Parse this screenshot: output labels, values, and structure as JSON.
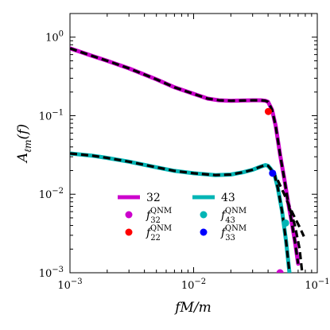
{
  "chart_data": {
    "type": "line",
    "xscale": "log",
    "yscale": "log",
    "xlim": [
      0.001,
      0.1
    ],
    "ylim": [
      0.001,
      2
    ],
    "xlabel": "fM/m",
    "ylabel": "A_ℓm(f)",
    "grid": false,
    "legend_position": "center-bottom",
    "x_ticks": [
      {
        "value": 0.001,
        "base": "10",
        "exp": "−3"
      },
      {
        "value": 0.01,
        "base": "10",
        "exp": "−2"
      },
      {
        "value": 0.1,
        "base": "10",
        "exp": "−1"
      }
    ],
    "y_ticks": [
      {
        "value": 0.001,
        "base": "10",
        "exp": "−3"
      },
      {
        "value": 0.01,
        "base": "10",
        "exp": "−2"
      },
      {
        "value": 0.1,
        "base": "10",
        "exp": "−1"
      },
      {
        "value": 1,
        "base": "10",
        "exp": "0"
      }
    ],
    "series": [
      {
        "name": "32",
        "color": "#cc00cc",
        "x": [
          0.001,
          0.0015,
          0.002,
          0.003,
          0.005,
          0.007,
          0.01,
          0.013,
          0.016,
          0.02,
          0.025,
          0.03,
          0.035,
          0.038,
          0.04,
          0.043,
          0.046,
          0.05,
          0.054,
          0.058,
          0.062,
          0.066,
          0.07
        ],
        "y": [
          0.72,
          0.58,
          0.5,
          0.4,
          0.29,
          0.23,
          0.19,
          0.165,
          0.157,
          0.155,
          0.156,
          0.157,
          0.157,
          0.155,
          0.15,
          0.12,
          0.075,
          0.032,
          0.016,
          0.008,
          0.0045,
          0.0025,
          0.0013
        ]
      },
      {
        "name": "43",
        "color": "#00b5b5",
        "x": [
          0.001,
          0.0015,
          0.002,
          0.003,
          0.005,
          0.007,
          0.01,
          0.015,
          0.02,
          0.025,
          0.03,
          0.035,
          0.038,
          0.04,
          0.042,
          0.045,
          0.048,
          0.052,
          0.056,
          0.06
        ],
        "y": [
          0.033,
          0.031,
          0.029,
          0.026,
          0.022,
          0.0198,
          0.0185,
          0.0175,
          0.0178,
          0.019,
          0.0205,
          0.0225,
          0.0235,
          0.023,
          0.021,
          0.018,
          0.012,
          0.006,
          0.0025,
          0.0009
        ]
      },
      {
        "name": "",
        "color": "#000000",
        "dashed": true,
        "x": [
          0.001,
          0.0015,
          0.002,
          0.003,
          0.005,
          0.007,
          0.01,
          0.013,
          0.016,
          0.02,
          0.025,
          0.03,
          0.035,
          0.038,
          0.04,
          0.043,
          0.046,
          0.05,
          0.054,
          0.058,
          0.062,
          0.066,
          0.07
        ],
        "y": [
          0.72,
          0.58,
          0.5,
          0.4,
          0.29,
          0.23,
          0.19,
          0.165,
          0.157,
          0.155,
          0.156,
          0.157,
          0.157,
          0.155,
          0.15,
          0.12,
          0.075,
          0.032,
          0.016,
          0.008,
          0.0045,
          0.0025,
          0.0013
        ]
      },
      {
        "name": "",
        "color": "#000000",
        "dashed": true,
        "x": [
          0.001,
          0.0015,
          0.002,
          0.003,
          0.005,
          0.007,
          0.01,
          0.015,
          0.02,
          0.025,
          0.03,
          0.035,
          0.038,
          0.04,
          0.042,
          0.045,
          0.048,
          0.052,
          0.056,
          0.06
        ],
        "y": [
          0.033,
          0.031,
          0.029,
          0.026,
          0.022,
          0.0198,
          0.0185,
          0.0175,
          0.0178,
          0.019,
          0.0205,
          0.0225,
          0.0235,
          0.023,
          0.021,
          0.018,
          0.012,
          0.006,
          0.0025,
          0.0009
        ]
      },
      {
        "name": "",
        "color": "#000000",
        "dashed": true,
        "x": [
          0.043,
          0.048,
          0.054,
          0.06,
          0.066,
          0.072,
          0.078
        ],
        "y": [
          0.02,
          0.015,
          0.01,
          0.0068,
          0.005,
          0.0038,
          0.0029
        ]
      },
      {
        "name": "",
        "color": "#000000",
        "dashed": true,
        "x": [
          0.06,
          0.066,
          0.072,
          0.076
        ],
        "y": [
          0.0065,
          0.004,
          0.002,
          0.0009
        ]
      }
    ],
    "markers": [
      {
        "label": "f_32^QNM",
        "color": "#cc00cc",
        "x": 0.05,
        "y": 0.001
      },
      {
        "label": "f_22^QNM",
        "color": "#ff0000",
        "x": 0.0402,
        "y": 0.113
      },
      {
        "label": "f_43^QNM",
        "color": "#00b5b5",
        "x": 0.0555,
        "y": 0.0043
      },
      {
        "label": "f_33^QNM",
        "color": "#0000ff",
        "x": 0.0435,
        "y": 0.0185
      }
    ],
    "legend": [
      {
        "kind": "line",
        "color": "#cc00cc",
        "text": "32"
      },
      {
        "kind": "line",
        "color": "#00b5b5",
        "text": "43"
      },
      {
        "kind": "dot",
        "color": "#cc00cc",
        "sym": "f",
        "sub": "32",
        "sup": "QNM"
      },
      {
        "kind": "dot",
        "color": "#00b5b5",
        "sym": "f",
        "sub": "43",
        "sup": "QNM"
      },
      {
        "kind": "dot",
        "color": "#ff0000",
        "sym": "f",
        "sub": "22",
        "sup": "QNM"
      },
      {
        "kind": "dot",
        "color": "#0000ff",
        "sym": "f",
        "sub": "33",
        "sup": "QNM"
      }
    ]
  }
}
